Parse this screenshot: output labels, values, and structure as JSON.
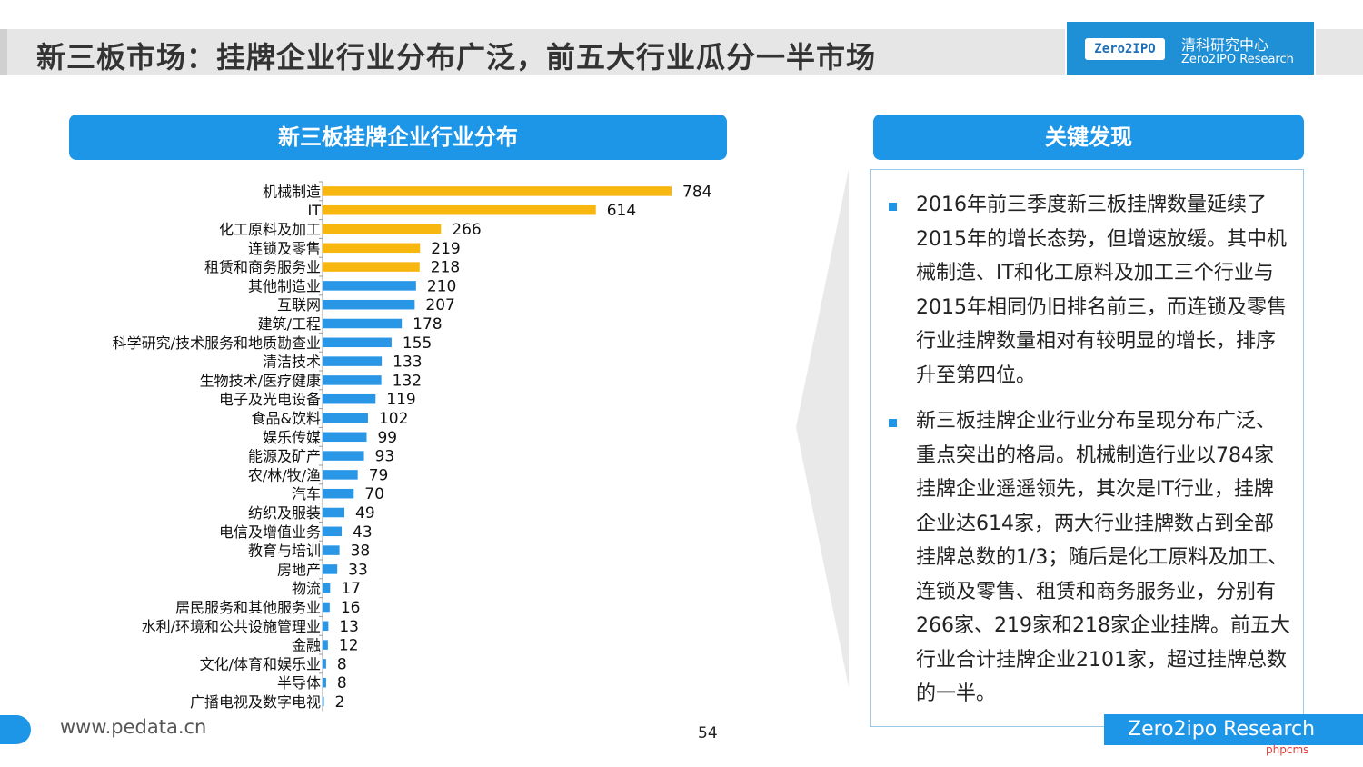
{
  "header": {
    "title": "新三板市场：挂牌企业行业分布广泛，前五大行业瓜分一半市场",
    "brand_logo": "Zero2IPO",
    "brand_cn": "清科研究中心",
    "brand_en": "Zero2IPO Research"
  },
  "chart_panel": {
    "title": "新三板挂牌企业行业分布"
  },
  "findings_panel": {
    "title": "关键发现",
    "items": [
      "2016年前三季度新三板挂牌数量延续了2015年的增长态势，但增速放缓。其中机械制造、IT和化工原料及加工三个行业与2015年相同仍旧排名前三，而连锁及零售行业挂牌数量相对有较明显的增长，排序升至第四位。",
      "新三板挂牌企业行业分布呈现分布广泛、重点突出的格局。机械制造行业以784家挂牌企业遥遥领先，其次是IT行业，挂牌企业达614家，两大行业挂牌数占到全部挂牌总数的1/3；随后是化工原料及加工、连锁及零售、租赁和商务服务业，分别有266家、219家和218家企业挂牌。前五大行业合计挂牌企业2101家，超过挂牌总数的一半。"
    ]
  },
  "chart_data": {
    "type": "bar",
    "orientation": "horizontal",
    "categories": [
      "机械制造",
      "IT",
      "化工原料及加工",
      "连锁及零售",
      "租赁和商务服务业",
      "其他制造业",
      "互联网",
      "建筑/工程",
      "科学研究/技术服务和地质勘查业",
      "清洁技术",
      "生物技术/医疗健康",
      "电子及光电设备",
      "食品&饮料",
      "娱乐传媒",
      "能源及矿产",
      "农/林/牧/渔",
      "汽车",
      "纺织及服装",
      "电信及增值业务",
      "教育与培训",
      "房地产",
      "物流",
      "居民服务和其他服务业",
      "水利/环境和公共设施管理业",
      "金融",
      "文化/体育和娱乐业",
      "半导体",
      "广播电视及数字电视"
    ],
    "values": [
      784,
      614,
      266,
      219,
      218,
      210,
      207,
      178,
      155,
      133,
      132,
      119,
      102,
      99,
      93,
      79,
      70,
      49,
      43,
      38,
      33,
      17,
      16,
      13,
      12,
      8,
      8,
      2
    ],
    "highlight_count": 5,
    "colors": {
      "highlight": "#f7b70f",
      "default": "#2997e6"
    },
    "grid": false,
    "title": "",
    "xlabel": "",
    "ylabel": ""
  },
  "footer": {
    "url": "www.pedata.cn",
    "page": "54",
    "brand": "Zero2ipo Research",
    "watermark": "phpcms"
  }
}
